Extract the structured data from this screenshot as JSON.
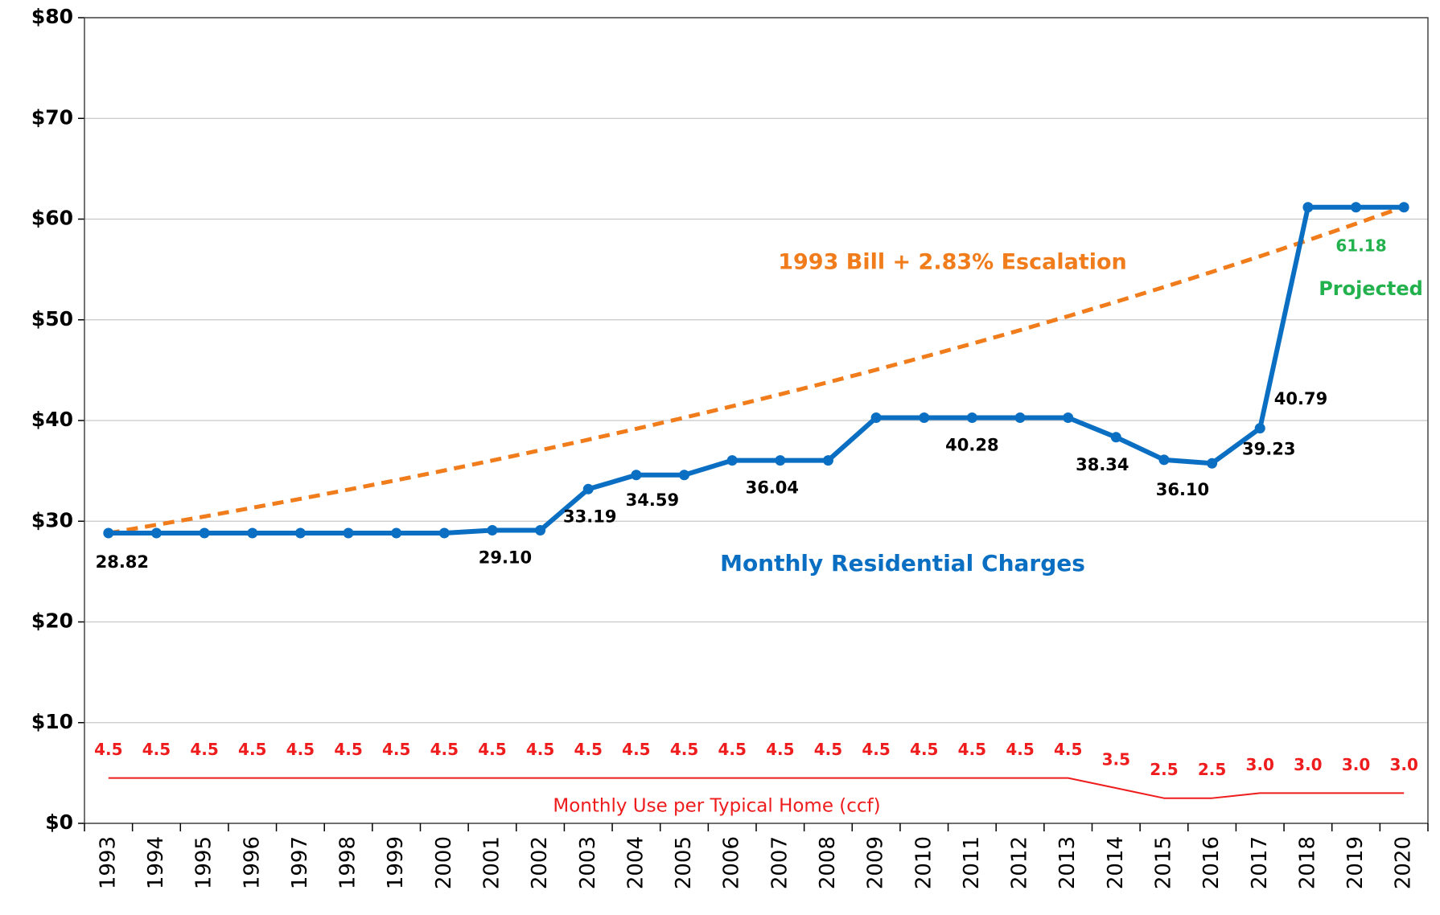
{
  "chart_data": {
    "type": "line",
    "categories": [
      "1993",
      "1994",
      "1995",
      "1996",
      "1997",
      "1998",
      "1999",
      "2000",
      "2001",
      "2002",
      "2003",
      "2004",
      "2005",
      "2006",
      "2007",
      "2008",
      "2009",
      "2010",
      "2011",
      "2012",
      "2013",
      "2014",
      "2015",
      "2016",
      "2017",
      "2018",
      "2019",
      "2020"
    ],
    "series": [
      {
        "name": "1993 Bill + 2.83% Escalation",
        "color": "#f07c1c",
        "style": "dashed",
        "values": [
          28.82,
          29.64,
          30.47,
          31.34,
          32.22,
          33.14,
          34.07,
          35.04,
          36.03,
          37.05,
          38.1,
          39.18,
          40.28,
          41.42,
          42.6,
          43.8,
          45.04,
          46.32,
          47.63,
          48.97,
          50.36,
          51.79,
          53.25,
          54.76,
          56.31,
          57.9,
          59.54,
          61.22
        ]
      },
      {
        "name": "Monthly Residential Charges",
        "color": "#0a6fc2",
        "style": "solid",
        "markers": true,
        "values": [
          28.82,
          28.82,
          28.82,
          28.82,
          28.82,
          28.82,
          28.82,
          28.82,
          29.1,
          29.1,
          33.19,
          34.59,
          34.59,
          36.04,
          36.04,
          36.04,
          40.28,
          40.28,
          40.28,
          40.28,
          40.28,
          38.34,
          36.1,
          35.75,
          39.23,
          61.18,
          61.18,
          61.18
        ],
        "value_labels": [
          "28.82",
          null,
          null,
          null,
          null,
          null,
          null,
          null,
          "29.10",
          null,
          "33.19",
          "34.59",
          null,
          null,
          "36.04",
          null,
          null,
          null,
          "40.28",
          null,
          null,
          "38.34",
          "36.10",
          null,
          "39.23",
          null,
          null,
          null
        ]
      },
      {
        "name": "Monthly Use per Typical Home (ccf)",
        "color": "#ee1c1c",
        "style": "thin",
        "values": [
          4.5,
          4.5,
          4.5,
          4.5,
          4.5,
          4.5,
          4.5,
          4.5,
          4.5,
          4.5,
          4.5,
          4.5,
          4.5,
          4.5,
          4.5,
          4.5,
          4.5,
          4.5,
          4.5,
          4.5,
          4.5,
          3.5,
          2.5,
          2.5,
          3.0,
          3.0,
          3.0,
          3.0
        ],
        "value_labels": [
          "4.5",
          "4.5",
          "4.5",
          "4.5",
          "4.5",
          "4.5",
          "4.5",
          "4.5",
          "4.5",
          "4.5",
          "4.5",
          "4.5",
          "4.5",
          "4.5",
          "4.5",
          "4.5",
          "4.5",
          "4.5",
          "4.5",
          "4.5",
          "4.5",
          "3.5",
          "2.5",
          "2.5",
          "3.0",
          "3.0",
          "3.0",
          "3.0"
        ]
      }
    ],
    "annotations": [
      {
        "text": "40.79",
        "color": "#000000"
      },
      {
        "text": "61.18",
        "color": "#22b14c"
      },
      {
        "text": "Projected",
        "color": "#22b14c"
      }
    ],
    "ylim": [
      0,
      80
    ],
    "yticks": [
      {
        "value": 0,
        "label": "$0"
      },
      {
        "value": 10,
        "label": "$10"
      },
      {
        "value": 20,
        "label": "$20"
      },
      {
        "value": 30,
        "label": "$30"
      },
      {
        "value": 40,
        "label": "$40"
      },
      {
        "value": 50,
        "label": "$50"
      },
      {
        "value": 60,
        "label": "$60"
      },
      {
        "value": 70,
        "label": "$70"
      },
      {
        "value": 80,
        "label": "$80"
      }
    ],
    "grid": true
  }
}
